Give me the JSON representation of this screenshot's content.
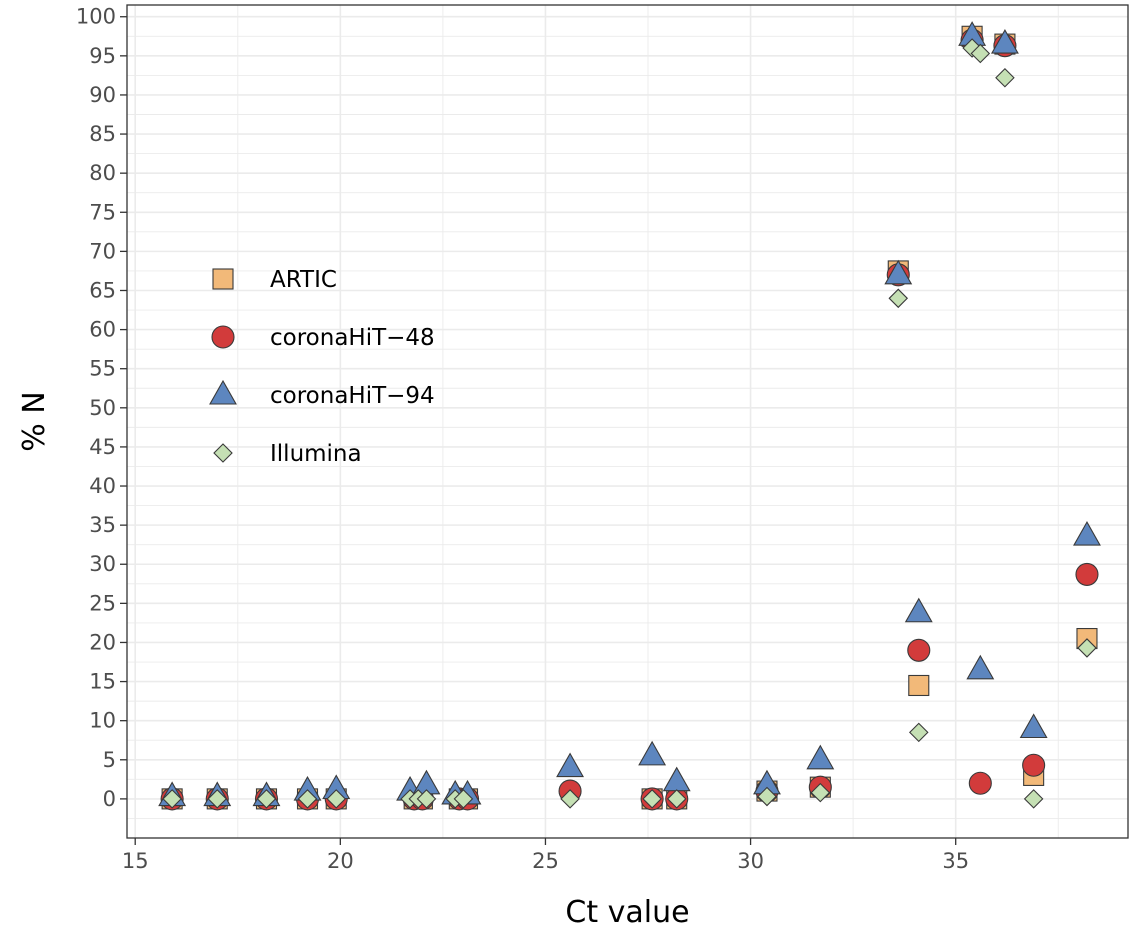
{
  "chart_data": {
    "type": "scatter",
    "xlabel": "Ct value",
    "ylabel": "% N",
    "xlim": [
      14.8,
      39.2
    ],
    "ylim": [
      -5,
      101.5
    ],
    "x_ticks": [
      15,
      20,
      25,
      30,
      35
    ],
    "y_ticks": [
      0,
      5,
      10,
      15,
      20,
      25,
      30,
      35,
      40,
      45,
      50,
      55,
      60,
      65,
      70,
      75,
      80,
      85,
      90,
      95,
      100
    ],
    "grid": true,
    "legend_position": "left",
    "series": [
      {
        "name": "ARTIC",
        "shape": "square",
        "color": "#f2b979",
        "points": [
          [
            15.9,
            0
          ],
          [
            17.0,
            0
          ],
          [
            18.2,
            0
          ],
          [
            19.2,
            0
          ],
          [
            19.9,
            0
          ],
          [
            21.8,
            0
          ],
          [
            22.0,
            0
          ],
          [
            22.9,
            0
          ],
          [
            23.1,
            0
          ],
          [
            27.6,
            0
          ],
          [
            28.2,
            0
          ],
          [
            30.4,
            1
          ],
          [
            31.7,
            1.5
          ],
          [
            33.6,
            67.5
          ],
          [
            34.1,
            14.5
          ],
          [
            35.4,
            97.5
          ],
          [
            36.2,
            96.5
          ],
          [
            36.9,
            3
          ],
          [
            38.2,
            20.5
          ]
        ]
      },
      {
        "name": "coronaHiT−48",
        "shape": "circle",
        "color": "#d23b3b",
        "points": [
          [
            15.9,
            0
          ],
          [
            17.0,
            0
          ],
          [
            18.2,
            0
          ],
          [
            19.2,
            0
          ],
          [
            19.9,
            0
          ],
          [
            21.8,
            0
          ],
          [
            22.0,
            0
          ],
          [
            22.9,
            0
          ],
          [
            23.1,
            0
          ],
          [
            25.6,
            1
          ],
          [
            27.6,
            0
          ],
          [
            28.2,
            0
          ],
          [
            30.4,
            1
          ],
          [
            31.7,
            1.5
          ],
          [
            33.6,
            67
          ],
          [
            34.1,
            19
          ],
          [
            35.4,
            97
          ],
          [
            35.6,
            2
          ],
          [
            36.2,
            96.3
          ],
          [
            36.9,
            4.3
          ],
          [
            38.2,
            28.7
          ]
        ]
      },
      {
        "name": "coronaHiT−94",
        "shape": "triangle",
        "color": "#5d86bf",
        "points": [
          [
            15.9,
            0.3
          ],
          [
            17.0,
            0.3
          ],
          [
            18.2,
            0.3
          ],
          [
            19.2,
            1
          ],
          [
            19.9,
            1.2
          ],
          [
            21.7,
            1
          ],
          [
            22.1,
            1.8
          ],
          [
            22.8,
            0.5
          ],
          [
            23.1,
            0.5
          ],
          [
            25.6,
            4
          ],
          [
            27.6,
            5.5
          ],
          [
            28.2,
            2.2
          ],
          [
            30.4,
            1.8
          ],
          [
            31.7,
            5
          ],
          [
            33.6,
            67
          ],
          [
            34.1,
            23.8
          ],
          [
            35.4,
            97.5
          ],
          [
            35.6,
            16.5
          ],
          [
            36.2,
            96.5
          ],
          [
            36.9,
            9
          ],
          [
            38.2,
            33.6
          ]
        ]
      },
      {
        "name": "Illumina",
        "shape": "diamond",
        "color": "#c5e0b4",
        "points": [
          [
            15.9,
            0
          ],
          [
            17.0,
            0
          ],
          [
            18.2,
            0
          ],
          [
            19.2,
            0
          ],
          [
            19.9,
            0
          ],
          [
            21.7,
            0
          ],
          [
            21.9,
            0
          ],
          [
            22.1,
            0
          ],
          [
            22.8,
            0
          ],
          [
            23.0,
            0
          ],
          [
            25.6,
            0
          ],
          [
            27.6,
            0
          ],
          [
            28.2,
            0
          ],
          [
            30.4,
            0.3
          ],
          [
            31.7,
            0.8
          ],
          [
            33.6,
            64
          ],
          [
            34.1,
            8.5
          ],
          [
            35.4,
            96
          ],
          [
            35.6,
            95.3
          ],
          [
            36.2,
            92.2
          ],
          [
            36.9,
            0
          ],
          [
            38.2,
            19.3
          ]
        ]
      }
    ]
  }
}
